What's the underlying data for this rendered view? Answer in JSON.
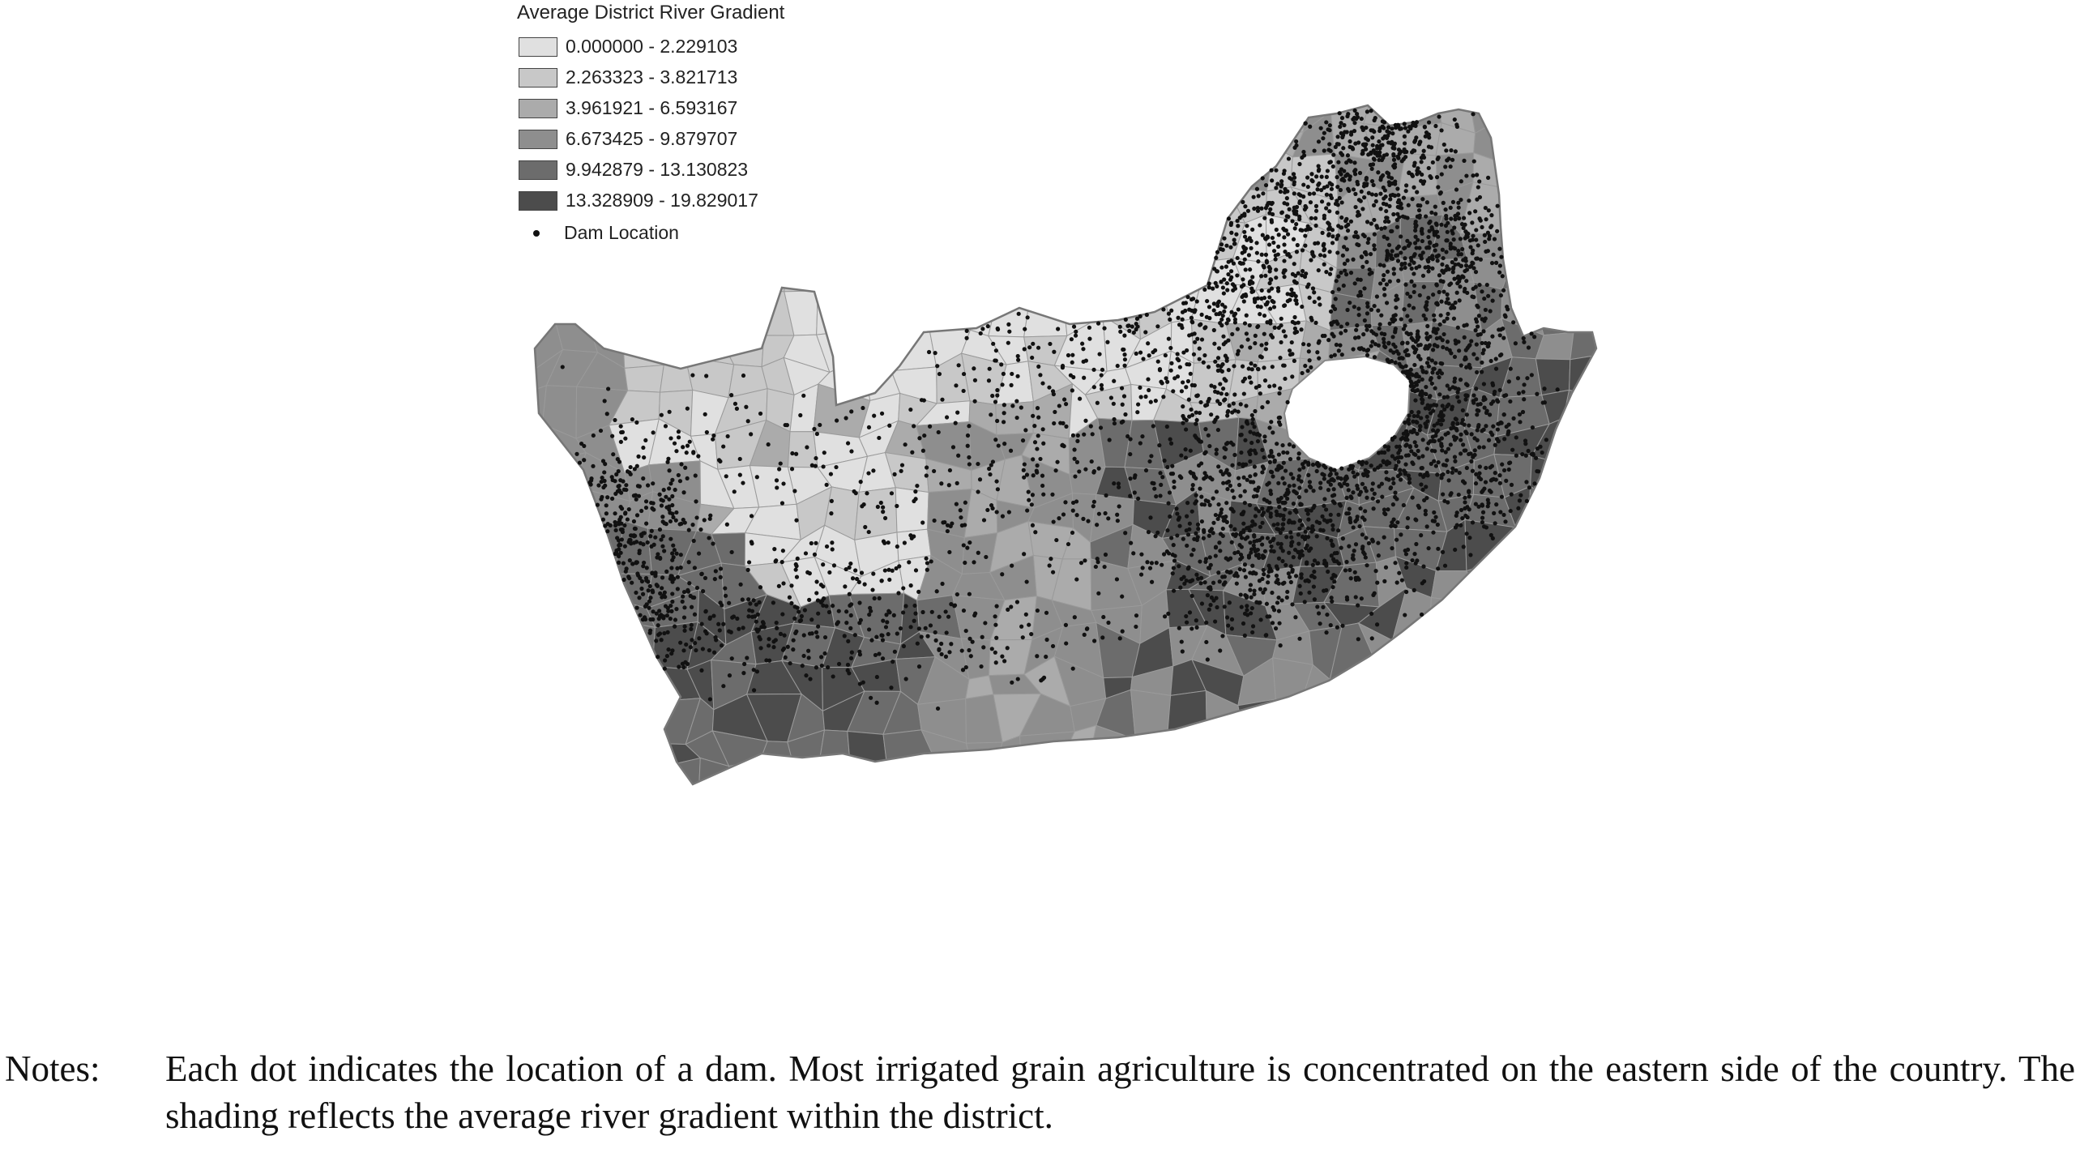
{
  "legend": {
    "title": "Average District River Gradient",
    "classes": [
      {
        "label": "0.000000 - 2.229103",
        "color": "#e0e0e0"
      },
      {
        "label": "2.263323 - 3.821713",
        "color": "#c8c8c8"
      },
      {
        "label": "3.961921 - 6.593167",
        "color": "#ababab"
      },
      {
        "label": "6.673425 - 9.879707",
        "color": "#8e8e8e"
      },
      {
        "label": "9.942879 - 13.130823",
        "color": "#6c6c6c"
      },
      {
        "label": "13.328909 - 19.829017",
        "color": "#4c4c4c"
      }
    ],
    "dam_label": "Dam Location"
  },
  "colors": {
    "outline": "#9a9a9a",
    "dot": "#111111",
    "lesotho": "#ffffff"
  },
  "notes": {
    "label": "Notes:",
    "text": "Each dot indicates the location of a dam. Most irrigated grain agriculture is concentrated on the eastern side of the country. The shading reflects the average river gradient within the district."
  }
}
